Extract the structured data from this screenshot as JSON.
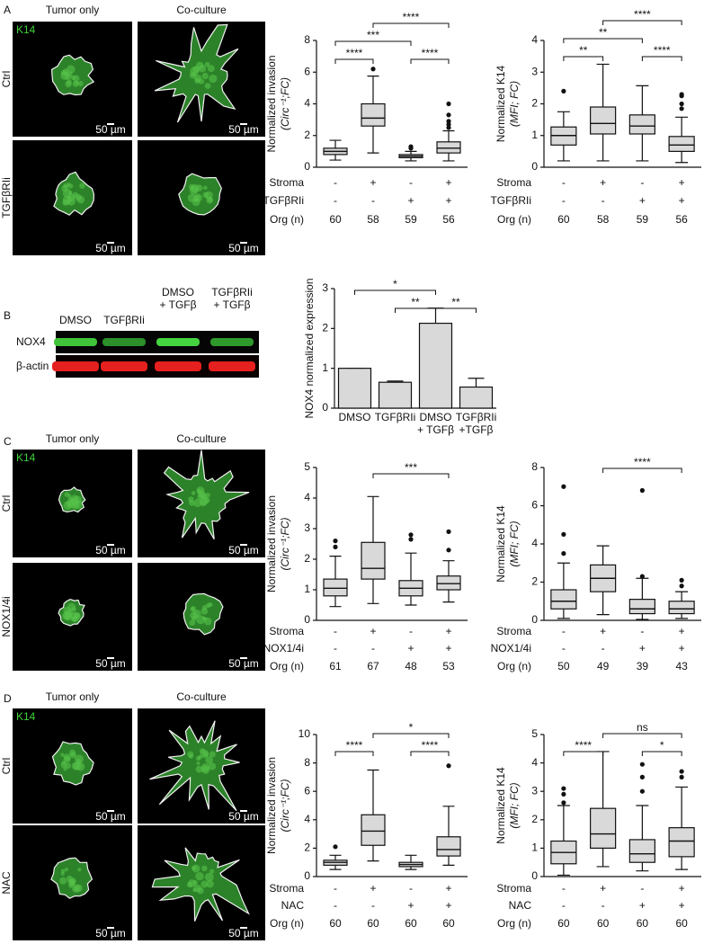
{
  "figure": {
    "panel_letters": [
      "A",
      "B",
      "C",
      "D"
    ],
    "image_panels": [
      {
        "headers": [
          "Tumor only",
          "Co-culture"
        ],
        "stain": "K14",
        "rows": [
          "Ctrl",
          "TGFβRIi"
        ],
        "scale_bar": "50 µm"
      },
      {
        "headers": [
          "Tumor only",
          "Co-culture"
        ],
        "stain": "K14",
        "rows": [
          "Ctrl",
          "NOX1/4i"
        ],
        "scale_bar": "50 µm"
      },
      {
        "headers": [
          "Tumor only",
          "Co-culture"
        ],
        "stain": "K14",
        "rows": [
          "Ctrl",
          "NAC"
        ],
        "scale_bar": "50 µm"
      }
    ],
    "blot": {
      "lanes": [
        "DMSO",
        "TGFβRIi",
        "DMSO\n+ TGFβ",
        "TGFβRIi\n+ TGFβ"
      ],
      "bands": [
        "NOX4",
        "β-actin"
      ]
    }
  },
  "chart_data": [
    {
      "type": "box",
      "ylabel": "Normalized invasion",
      "ylabel_note": "(Circ⁻¹;FC)",
      "ylim": [
        0,
        8
      ],
      "yticks": [
        0,
        2,
        4,
        6,
        8
      ],
      "color": "#d9d9d9",
      "boxes": [
        {
          "whisker_low": 0.45,
          "q1": 0.8,
          "median": 1.0,
          "q3": 1.2,
          "whisker_high": 1.7,
          "outliers": []
        },
        {
          "whisker_low": 0.9,
          "q1": 2.6,
          "median": 3.1,
          "q3": 4.0,
          "whisker_high": 5.75,
          "outliers": [
            6.2
          ]
        },
        {
          "whisker_low": 0.4,
          "q1": 0.6,
          "median": 0.7,
          "q3": 0.8,
          "whisker_high": 1.0,
          "outliers": [
            1.2,
            1.3
          ]
        },
        {
          "whisker_low": 0.4,
          "q1": 0.9,
          "median": 1.2,
          "q3": 1.6,
          "whisker_high": 2.3,
          "outliers": [
            2.5,
            2.7,
            2.9,
            3.3,
            4.0
          ]
        }
      ],
      "significance": [
        {
          "from": 0,
          "to": 1,
          "label": "****"
        },
        {
          "from": 2,
          "to": 3,
          "label": "****"
        },
        {
          "from": 0,
          "to": 2,
          "label": "***"
        },
        {
          "from": 1,
          "to": 3,
          "label": "****"
        }
      ],
      "conditions": [
        {
          "label": "Stroma",
          "values": [
            "-",
            "+",
            "-",
            "+"
          ]
        },
        {
          "label": "TGFβRIi",
          "values": [
            "-",
            "-",
            "+",
            "+"
          ]
        },
        {
          "label": "Org (n)",
          "values": [
            60,
            58,
            59,
            56
          ]
        }
      ]
    },
    {
      "type": "box",
      "ylabel": "Normalized K14",
      "ylabel_note": "(MFI; FC)",
      "ylim": [
        0,
        4
      ],
      "yticks": [
        0,
        1,
        2,
        3,
        4
      ],
      "color": "#d9d9d9",
      "boxes": [
        {
          "whisker_low": 0.2,
          "q1": 0.7,
          "median": 1.0,
          "q3": 1.27,
          "whisker_high": 1.75,
          "outliers": [
            2.4
          ]
        },
        {
          "whisker_low": 0.2,
          "q1": 1.05,
          "median": 1.38,
          "q3": 1.9,
          "whisker_high": 3.25,
          "outliers": []
        },
        {
          "whisker_low": 0.2,
          "q1": 1.05,
          "median": 1.3,
          "q3": 1.65,
          "whisker_high": 2.57,
          "outliers": []
        },
        {
          "whisker_low": 0.15,
          "q1": 0.5,
          "median": 0.7,
          "q3": 0.97,
          "whisker_high": 1.58,
          "outliers": [
            1.85,
            2.0,
            2.25,
            2.3
          ]
        }
      ],
      "significance": [
        {
          "from": 0,
          "to": 1,
          "label": "**"
        },
        {
          "from": 2,
          "to": 3,
          "label": "****"
        },
        {
          "from": 0,
          "to": 2,
          "label": "**"
        },
        {
          "from": 1,
          "to": 3,
          "label": "****"
        }
      ],
      "conditions": [
        {
          "label": "Stroma",
          "values": [
            "-",
            "+",
            "-",
            "+"
          ]
        },
        {
          "label": "TGFβRIi",
          "values": [
            "-",
            "-",
            "+",
            "+"
          ]
        },
        {
          "label": "Org (n)",
          "values": [
            60,
            58,
            59,
            56
          ]
        }
      ]
    },
    {
      "type": "bar",
      "ylabel": "NOX4 normalized expression",
      "ylim": [
        0,
        3
      ],
      "yticks": [
        0,
        1,
        2,
        3
      ],
      "color": "#d9d9d9",
      "categories": [
        "DMSO",
        "TGFβRIi",
        "DMSO\n+ TGFβ",
        "TGFβRIi\n+TGFβ"
      ],
      "values": [
        1.0,
        0.65,
        2.13,
        0.53
      ],
      "errors": [
        0,
        0.03,
        0.38,
        0.22
      ],
      "significance": [
        {
          "from": 1,
          "to": 2,
          "label": "**"
        },
        {
          "from": 2,
          "to": 3,
          "label": "**"
        },
        {
          "from": 0,
          "to": 2,
          "label": "*"
        }
      ]
    },
    {
      "type": "box",
      "ylabel": "Normalized invasion",
      "ylabel_note": "(Circ⁻¹;FC)",
      "ylim": [
        0,
        5
      ],
      "yticks": [
        0,
        1,
        2,
        3,
        4,
        5
      ],
      "color": "#d9d9d9",
      "boxes": [
        {
          "whisker_low": 0.45,
          "q1": 0.8,
          "median": 1.05,
          "q3": 1.35,
          "whisker_high": 2.1,
          "outliers": [
            2.4,
            2.6
          ]
        },
        {
          "whisker_low": 0.55,
          "q1": 1.35,
          "median": 1.7,
          "q3": 2.55,
          "whisker_high": 4.05,
          "outliers": []
        },
        {
          "whisker_low": 0.5,
          "q1": 0.8,
          "median": 1.05,
          "q3": 1.3,
          "whisker_high": 2.2,
          "outliers": [
            2.65,
            2.8
          ]
        },
        {
          "whisker_low": 0.6,
          "q1": 1.0,
          "median": 1.2,
          "q3": 1.45,
          "whisker_high": 1.95,
          "outliers": [
            2.3,
            2.9
          ]
        }
      ],
      "significance": [
        {
          "from": 1,
          "to": 3,
          "label": "***"
        }
      ],
      "conditions": [
        {
          "label": "Stroma",
          "values": [
            "-",
            "+",
            "-",
            "+"
          ]
        },
        {
          "label": "NOX1/4i",
          "values": [
            "-",
            "-",
            "+",
            "+"
          ]
        },
        {
          "label": "Org (n)",
          "values": [
            61,
            67,
            48,
            53
          ]
        }
      ]
    },
    {
      "type": "box",
      "ylabel": "Normalized K14",
      "ylabel_note": "(MFI; FC)",
      "ylim": [
        0,
        8
      ],
      "yticks": [
        0,
        2,
        4,
        6,
        8
      ],
      "color": "#d9d9d9",
      "boxes": [
        {
          "whisker_low": 0.1,
          "q1": 0.6,
          "median": 1.0,
          "q3": 1.6,
          "whisker_high": 3.0,
          "outliers": [
            3.5,
            4.5,
            7.0
          ]
        },
        {
          "whisker_low": 0.3,
          "q1": 1.5,
          "median": 2.2,
          "q3": 2.9,
          "whisker_high": 3.9,
          "outliers": []
        },
        {
          "whisker_low": 0.05,
          "q1": 0.35,
          "median": 0.6,
          "q3": 1.1,
          "whisker_high": 2.2,
          "outliers": [
            2.3,
            6.8
          ]
        },
        {
          "whisker_low": 0.1,
          "q1": 0.35,
          "median": 0.6,
          "q3": 1.0,
          "whisker_high": 1.5,
          "outliers": [
            1.8,
            2.1
          ]
        }
      ],
      "significance": [
        {
          "from": 1,
          "to": 3,
          "label": "****"
        }
      ],
      "conditions": [
        {
          "label": "Stroma",
          "values": [
            "-",
            "+",
            "-",
            "+"
          ]
        },
        {
          "label": "NOX1/4i",
          "values": [
            "-",
            "-",
            "+",
            "+"
          ]
        },
        {
          "label": "Org (n)",
          "values": [
            50,
            49,
            39,
            43
          ]
        }
      ]
    },
    {
      "type": "box",
      "ylabel": "Normalized invasion",
      "ylabel_note": "(Circ⁻¹;FC)",
      "ylim": [
        0,
        10
      ],
      "yticks": [
        0,
        2,
        4,
        6,
        8,
        10
      ],
      "color": "#d9d9d9",
      "boxes": [
        {
          "whisker_low": 0.5,
          "q1": 0.8,
          "median": 1.0,
          "q3": 1.15,
          "whisker_high": 1.5,
          "outliers": [
            2.1
          ]
        },
        {
          "whisker_low": 1.1,
          "q1": 2.2,
          "median": 3.2,
          "q3": 4.35,
          "whisker_high": 7.5,
          "outliers": []
        },
        {
          "whisker_low": 0.5,
          "q1": 0.7,
          "median": 0.85,
          "q3": 1.0,
          "whisker_high": 1.5,
          "outliers": []
        },
        {
          "whisker_low": 0.8,
          "q1": 1.45,
          "median": 1.9,
          "q3": 2.8,
          "whisker_high": 4.95,
          "outliers": [
            7.8
          ]
        }
      ],
      "significance": [
        {
          "from": 0,
          "to": 1,
          "label": "****"
        },
        {
          "from": 2,
          "to": 3,
          "label": "****"
        },
        {
          "from": 1,
          "to": 3,
          "label": "*"
        }
      ],
      "conditions": [
        {
          "label": "Stroma",
          "values": [
            "-",
            "+",
            "-",
            "+"
          ]
        },
        {
          "label": "NAC",
          "values": [
            "-",
            "-",
            "+",
            "+"
          ]
        },
        {
          "label": "Org (n)",
          "values": [
            60,
            60,
            60,
            60
          ]
        }
      ]
    },
    {
      "type": "box",
      "ylabel": "Normalized K14",
      "ylabel_note": "(MFI; FC)",
      "ylim": [
        0,
        5
      ],
      "yticks": [
        0,
        1,
        2,
        3,
        4,
        5
      ],
      "color": "#d9d9d9",
      "boxes": [
        {
          "whisker_low": 0.05,
          "q1": 0.45,
          "median": 0.85,
          "q3": 1.25,
          "whisker_high": 2.5,
          "outliers": [
            2.6,
            2.9,
            3.1
          ]
        },
        {
          "whisker_low": 0.35,
          "q1": 1.0,
          "median": 1.5,
          "q3": 2.4,
          "whisker_high": 4.4,
          "outliers": []
        },
        {
          "whisker_low": 0.2,
          "q1": 0.5,
          "median": 0.8,
          "q3": 1.3,
          "whisker_high": 2.5,
          "outliers": [
            3.0,
            3.5,
            3.95
          ]
        },
        {
          "whisker_low": 0.25,
          "q1": 0.7,
          "median": 1.25,
          "q3": 1.72,
          "whisker_high": 3.15,
          "outliers": [
            3.5,
            3.7
          ]
        }
      ],
      "significance": [
        {
          "from": 0,
          "to": 1,
          "label": "****"
        },
        {
          "from": 2,
          "to": 3,
          "label": "*"
        },
        {
          "from": 1,
          "to": 3,
          "label": "ns"
        }
      ],
      "conditions": [
        {
          "label": "Stroma",
          "values": [
            "-",
            "+",
            "-",
            "+"
          ]
        },
        {
          "label": "NAC",
          "values": [
            "-",
            "-",
            "+",
            "+"
          ]
        },
        {
          "label": "Org (n)",
          "values": [
            60,
            60,
            60,
            60
          ]
        }
      ]
    }
  ]
}
